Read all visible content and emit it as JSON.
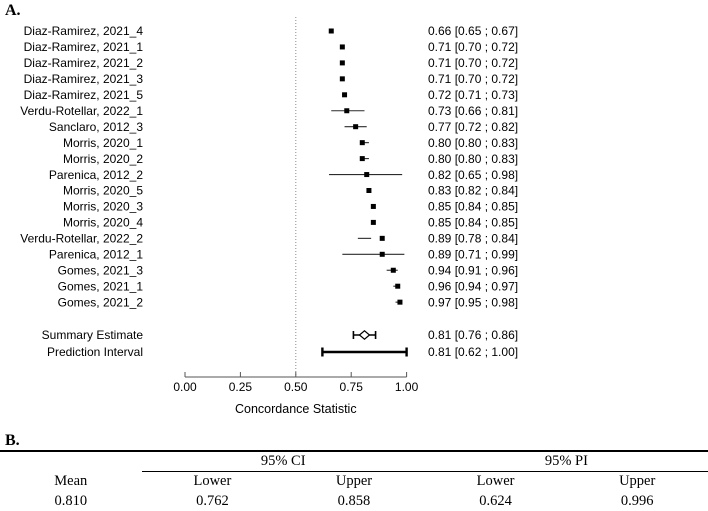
{
  "panel_a": {
    "label": "A."
  },
  "chart_data": {
    "type": "forest",
    "title": "",
    "xlabel": "Concordance Statistic",
    "ylabel": "",
    "xlim": [
      0,
      1
    ],
    "x_ticks": [
      "0.00",
      "0.25",
      "0.50",
      "0.75",
      "1.00"
    ],
    "reference_line": 0.5,
    "grid": false,
    "legend": "none",
    "studies": [
      {
        "label": "Diaz-Ramirez, 2021_4",
        "estimate": 0.66,
        "lower": 0.65,
        "upper": 0.67,
        "text": "0.66 [0.65 ; 0.67]"
      },
      {
        "label": "Diaz-Ramirez, 2021_1",
        "estimate": 0.71,
        "lower": 0.7,
        "upper": 0.72,
        "text": "0.71 [0.70 ; 0.72]"
      },
      {
        "label": "Diaz-Ramirez, 2021_2",
        "estimate": 0.71,
        "lower": 0.7,
        "upper": 0.72,
        "text": "0.71 [0.70 ; 0.72]"
      },
      {
        "label": "Diaz-Ramirez, 2021_3",
        "estimate": 0.71,
        "lower": 0.7,
        "upper": 0.72,
        "text": "0.71 [0.70 ; 0.72]"
      },
      {
        "label": "Diaz-Ramirez, 2021_5",
        "estimate": 0.72,
        "lower": 0.71,
        "upper": 0.73,
        "text": "0.72 [0.71 ; 0.73]"
      },
      {
        "label": "Verdu-Rotellar, 2022_1",
        "estimate": 0.73,
        "lower": 0.66,
        "upper": 0.81,
        "text": "0.73 [0.66 ; 0.81]"
      },
      {
        "label": "Sanclaro, 2012_3",
        "estimate": 0.77,
        "lower": 0.72,
        "upper": 0.82,
        "text": "0.77 [0.72 ; 0.82]"
      },
      {
        "label": "Morris, 2020_1",
        "estimate": 0.8,
        "lower": 0.8,
        "upper": 0.83,
        "text": "0.80 [0.80 ; 0.83]"
      },
      {
        "label": "Morris, 2020_2",
        "estimate": 0.8,
        "lower": 0.8,
        "upper": 0.83,
        "text": "0.80 [0.80 ; 0.83]"
      },
      {
        "label": "Parenica, 2012_2",
        "estimate": 0.82,
        "lower": 0.65,
        "upper": 0.98,
        "text": "0.82 [0.65 ; 0.98]"
      },
      {
        "label": "Morris, 2020_5",
        "estimate": 0.83,
        "lower": 0.82,
        "upper": 0.84,
        "text": "0.83 [0.82 ; 0.84]"
      },
      {
        "label": "Morris, 2020_3",
        "estimate": 0.85,
        "lower": 0.84,
        "upper": 0.85,
        "text": "0.85 [0.84 ; 0.85]"
      },
      {
        "label": "Morris, 2020_4",
        "estimate": 0.85,
        "lower": 0.84,
        "upper": 0.85,
        "text": "0.85 [0.84 ; 0.85]"
      },
      {
        "label": "Verdu-Rotellar, 2022_2",
        "estimate": 0.89,
        "lower": 0.78,
        "upper": 0.84,
        "text": "0.89 [0.78 ; 0.84]"
      },
      {
        "label": "Parenica, 2012_1",
        "estimate": 0.89,
        "lower": 0.71,
        "upper": 0.99,
        "text": "0.89 [0.71 ; 0.99]"
      },
      {
        "label": "Gomes, 2021_3",
        "estimate": 0.94,
        "lower": 0.91,
        "upper": 0.96,
        "text": "0.94 [0.91 ; 0.96]"
      },
      {
        "label": "Gomes, 2021_1",
        "estimate": 0.96,
        "lower": 0.94,
        "upper": 0.97,
        "text": "0.96 [0.94 ; 0.97]"
      },
      {
        "label": "Gomes, 2021_2",
        "estimate": 0.97,
        "lower": 0.95,
        "upper": 0.98,
        "text": "0.97 [0.95 ; 0.98]"
      }
    ],
    "summary": {
      "label": "Summary Estimate",
      "estimate": 0.81,
      "lower": 0.76,
      "upper": 0.86,
      "text": "0.81 [0.76 ; 0.86]"
    },
    "prediction": {
      "label": "Prediction Interval",
      "estimate": 0.81,
      "lower": 0.62,
      "upper": 1.0,
      "text": "0.81 [0.62 ; 1.00]"
    }
  },
  "table": {
    "label": "B.",
    "group_ci": "95% CI",
    "group_pi": "95% PI",
    "col_mean": "Mean",
    "col_lower": "Lower",
    "col_upper": "Upper",
    "values": {
      "mean": "0.810",
      "ci_lower": "0.762",
      "ci_upper": "0.858",
      "pi_lower": "0.624",
      "pi_upper": "0.996"
    }
  },
  "colors": {
    "marker": "#000000",
    "ci_line": "#2b2b2b",
    "axis": "#555555",
    "reference": "#8a8a8a",
    "text": "#000000"
  }
}
